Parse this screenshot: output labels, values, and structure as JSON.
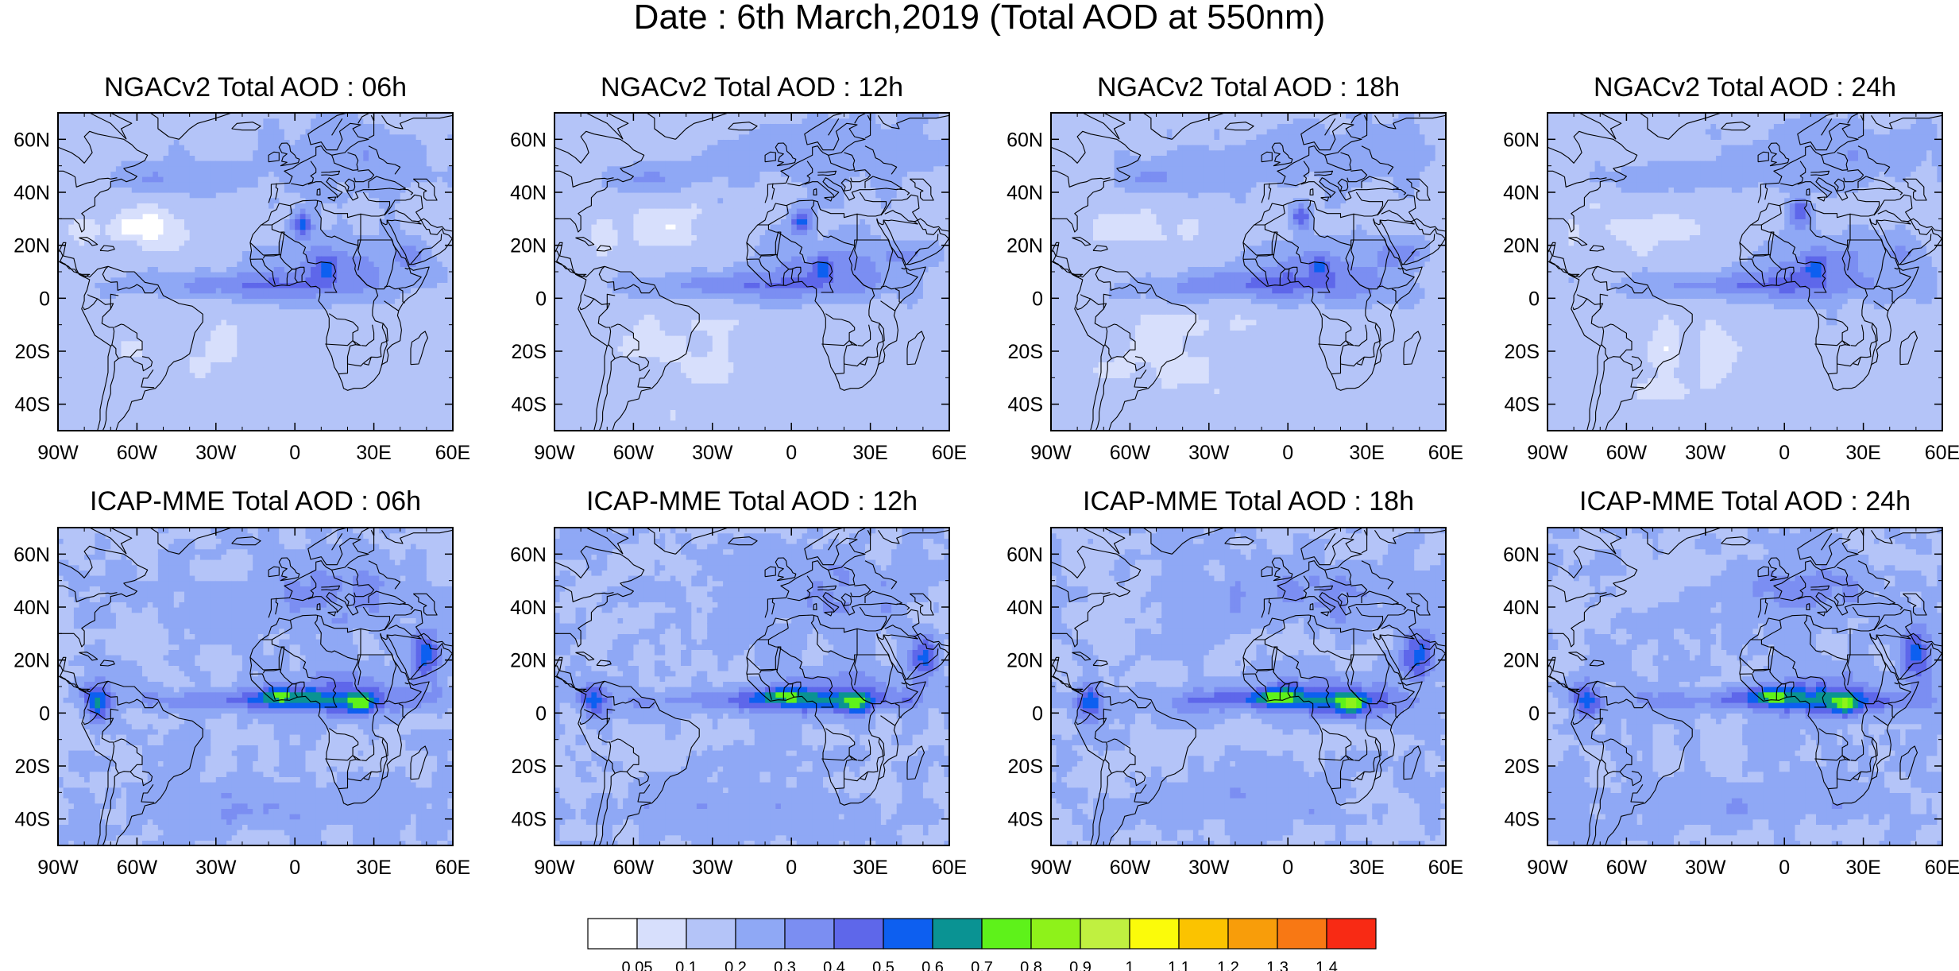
{
  "title": "Date : 6th March,2019 (Total AOD at 550nm)",
  "panels": [
    {
      "title": "NGACv2 Total AOD : 06h",
      "model": "ngac",
      "step": 0
    },
    {
      "title": "NGACv2 Total AOD : 12h",
      "model": "ngac",
      "step": 1
    },
    {
      "title": "NGACv2 Total AOD : 18h",
      "model": "ngac",
      "step": 2
    },
    {
      "title": "NGACv2 Total AOD : 24h",
      "model": "ngac",
      "step": 3
    },
    {
      "title": "ICAP-MME Total AOD : 06h",
      "model": "icap",
      "step": 0
    },
    {
      "title": "ICAP-MME Total AOD : 12h",
      "model": "icap",
      "step": 1
    },
    {
      "title": "ICAP-MME Total AOD : 18h",
      "model": "icap",
      "step": 2
    },
    {
      "title": "ICAP-MME Total AOD : 24h",
      "model": "icap",
      "step": 3
    }
  ],
  "axes": {
    "lon_range": [
      -90,
      60
    ],
    "lat_range": [
      -50,
      70
    ],
    "x_ticks": [
      {
        "v": -90,
        "label": "90W"
      },
      {
        "v": -60,
        "label": "60W"
      },
      {
        "v": -30,
        "label": "30W"
      },
      {
        "v": 0,
        "label": "0"
      },
      {
        "v": 30,
        "label": "30E"
      },
      {
        "v": 60,
        "label": "60E"
      }
    ],
    "y_ticks": [
      {
        "v": 60,
        "label": "60N"
      },
      {
        "v": 40,
        "label": "40N"
      },
      {
        "v": 20,
        "label": "20N"
      },
      {
        "v": 0,
        "label": "0"
      },
      {
        "v": -20,
        "label": "20S"
      },
      {
        "v": -40,
        "label": "40S"
      }
    ]
  },
  "colorbar": {
    "colors": [
      "#ffffff",
      "#d7dffc",
      "#b4c4f8",
      "#8fa8f5",
      "#7b8ef2",
      "#5e67ea",
      "#0d5ff0",
      "#0a9393",
      "#5ef21a",
      "#8ef21a",
      "#c0f040",
      "#fbfb0a",
      "#fbc300",
      "#f89d0a",
      "#f87814",
      "#f82a14"
    ],
    "labels": [
      "0.05",
      "0.1",
      "0.2",
      "0.3",
      "0.4",
      "0.5",
      "0.6",
      "0.7",
      "0.8",
      "0.9",
      "1",
      "1.1",
      "1.2",
      "1.3",
      "1.4"
    ]
  }
}
